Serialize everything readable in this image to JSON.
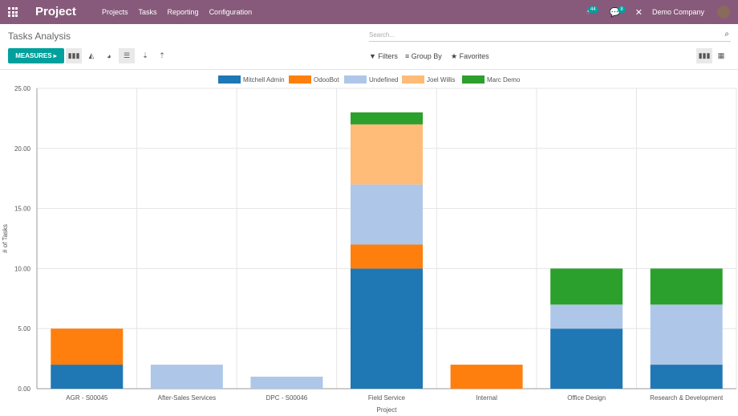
{
  "nav": {
    "app": "Project",
    "menu": [
      "Projects",
      "Tasks",
      "Reporting",
      "Configuration"
    ],
    "activity_count": "44",
    "message_count": "8",
    "company": "Demo Company"
  },
  "page": {
    "title": "Tasks Analysis",
    "search_placeholder": "Search...",
    "measures": "MEASURES",
    "filters": "Filters",
    "group_by": "Group By",
    "favorites": "Favorites"
  },
  "chart_data": {
    "type": "bar",
    "stacked": true,
    "categories": [
      "AGR - S00045",
      "After-Sales Services",
      "DPC - S00046",
      "Field Service",
      "Internal",
      "Office Design",
      "Research & Development"
    ],
    "xlabel": "Project",
    "ylabel": "# of Tasks",
    "ylim": [
      0,
      25
    ],
    "yticks": [
      "0.00",
      "5.00",
      "10.00",
      "15.00",
      "20.00",
      "25.00"
    ],
    "legend_position": "top-center",
    "series": [
      {
        "name": "Mitchell Admin",
        "color": "#1f77b4",
        "values": [
          2,
          0,
          0,
          10,
          0,
          5,
          2
        ]
      },
      {
        "name": "OdooBot",
        "color": "#ff7f0e",
        "values": [
          3,
          0,
          0,
          2,
          2,
          0,
          0
        ]
      },
      {
        "name": "Undefined",
        "color": "#aec7e8",
        "values": [
          0,
          2,
          1,
          5,
          0,
          2,
          5
        ]
      },
      {
        "name": "Joel Willis",
        "color": "#ffbb78",
        "values": [
          0,
          0,
          0,
          5,
          0,
          0,
          0
        ]
      },
      {
        "name": "Marc Demo",
        "color": "#2ca02c",
        "values": [
          0,
          0,
          0,
          1,
          0,
          3,
          3
        ]
      }
    ]
  }
}
